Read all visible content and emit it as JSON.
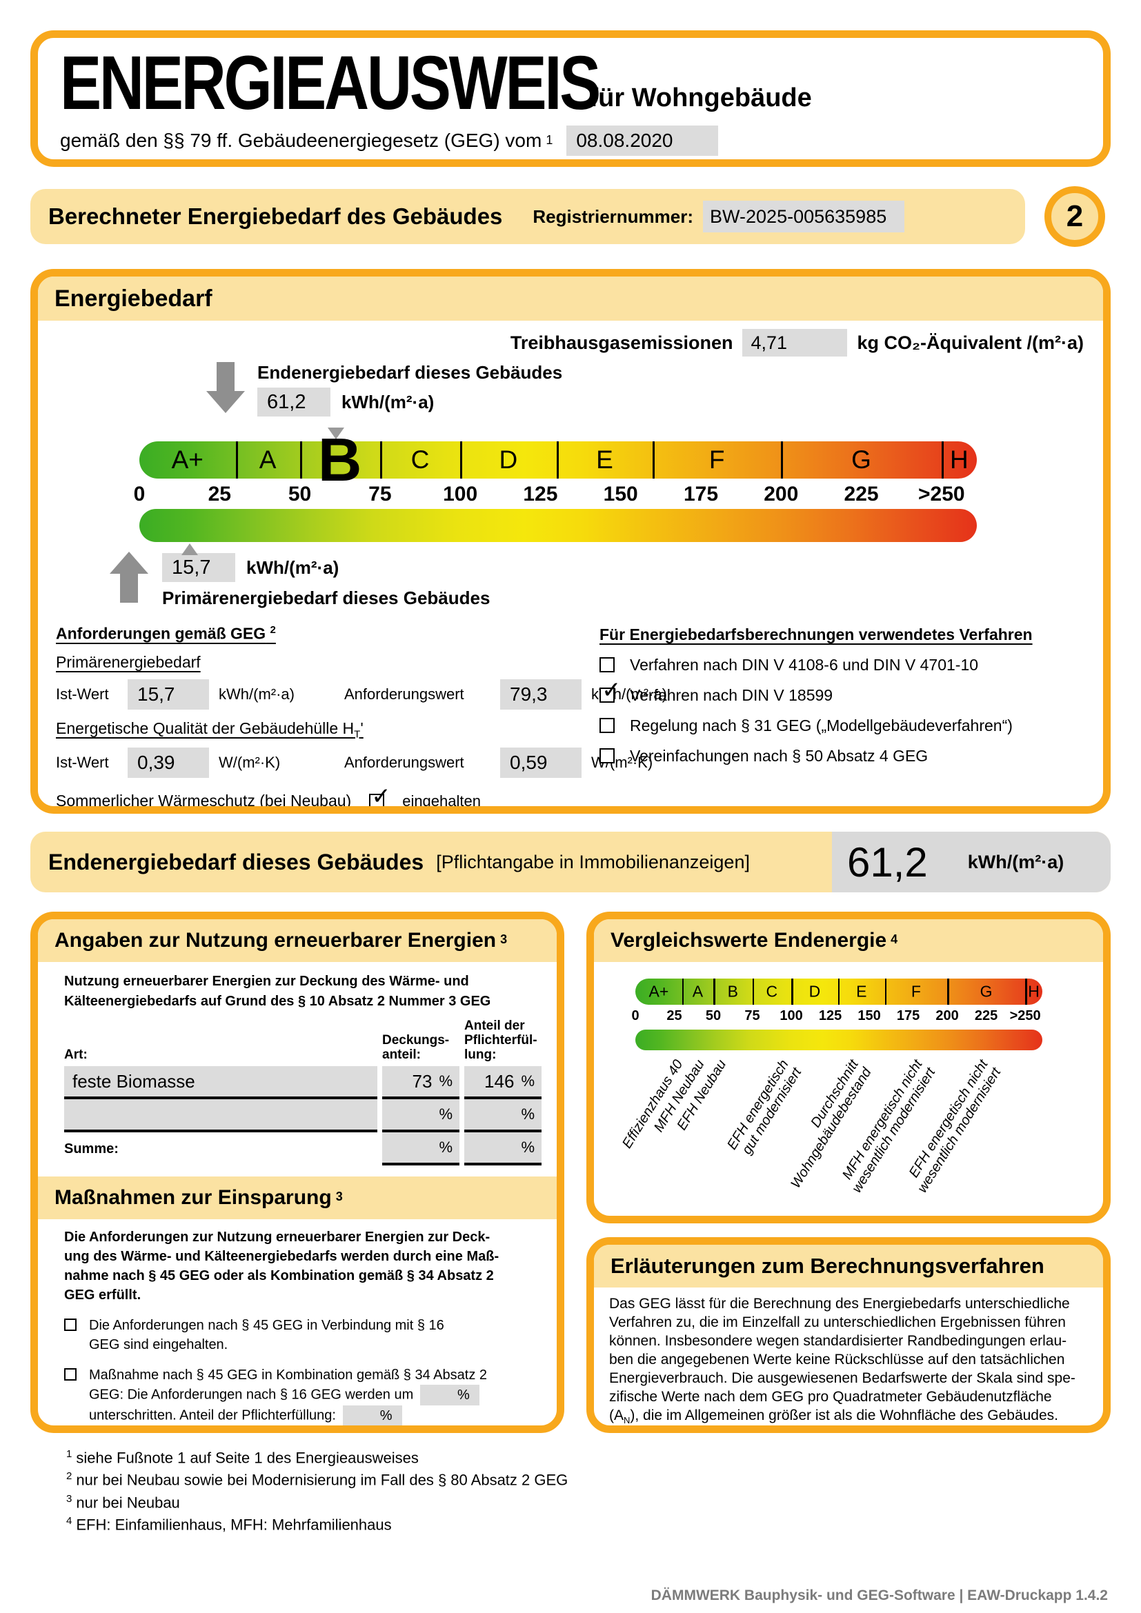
{
  "colors": {
    "accent_orange": "#F8A81C",
    "band_yellow": "#FBE2A2",
    "value_box_gray": "#DCDCDC",
    "arrow_gray": "#8F8F8F",
    "footer_gray": "#7C7C7C",
    "scale_green": "#3BAD24",
    "scale_yellow": "#F5E70C",
    "scale_red": "#E5321A"
  },
  "icons": {
    "check": "✓"
  },
  "page": {
    "number": "2",
    "footer": "DÄMMWERK Bauphysik- und GEG-Software | EAW-Druckapp 1.4.2"
  },
  "header": {
    "title": "ENERGIEAUSWEIS",
    "subtitle": "für Wohngebäude",
    "law_text": "gemäß den §§ 79 ff. Gebäudeenergiegesetz (GEG) vom",
    "law_sup": "1",
    "date": "08.08.2020"
  },
  "section_bar": {
    "title": "Berechneter Energiebedarf des Gebäudes",
    "registration_label": "Registriernummer:",
    "registration_number": "BW-2025-005635985"
  },
  "scale_def": {
    "max": 261,
    "classes": [
      {
        "letter": "A+",
        "from": 0,
        "to": 30
      },
      {
        "letter": "A",
        "from": 30,
        "to": 50
      },
      {
        "letter": "B",
        "from": 50,
        "to": 75
      },
      {
        "letter": "C",
        "from": 75,
        "to": 100
      },
      {
        "letter": "D",
        "from": 100,
        "to": 130
      },
      {
        "letter": "E",
        "from": 130,
        "to": 160
      },
      {
        "letter": "F",
        "from": 160,
        "to": 200
      },
      {
        "letter": "G",
        "from": 200,
        "to": 250
      },
      {
        "letter": "H",
        "from": 250,
        "to": 261
      }
    ],
    "ticks": [
      {
        "value": 0,
        "label": "0"
      },
      {
        "value": 25,
        "label": "25"
      },
      {
        "value": 50,
        "label": "50"
      },
      {
        "value": 75,
        "label": "75"
      },
      {
        "value": 100,
        "label": "100"
      },
      {
        "value": 125,
        "label": "125"
      },
      {
        "value": 150,
        "label": "150"
      },
      {
        "value": 175,
        "label": "175"
      },
      {
        "value": 200,
        "label": "200"
      },
      {
        "value": 225,
        "label": "225"
      },
      {
        "value": 250,
        "label": ">250"
      }
    ]
  },
  "energiebedarf": {
    "title": "Energiebedarf",
    "ghg_label": "Treibhausgasemissionen",
    "ghg_value": "4,71",
    "ghg_unit": "kg CO₂-Äquivalent /(m²·a)",
    "end_label": "Endenergiebedarf dieses Gebäudes",
    "end_value": "61,2",
    "end_unit": "kWh/(m²·a)",
    "primary_value": "15,7",
    "primary_unit": "kWh/(m²·a)",
    "primary_label": "Primärenergiebedarf dieses Gebäudes",
    "current_class": "B",
    "markers": {
      "end_value": 61.2,
      "primary_value": 15.7
    },
    "requirements": {
      "heading": "Anforderungen gemäß GEG",
      "heading_sup": "2",
      "primary_heading": "Primärenergiebedarf",
      "ist_label": "Ist-Wert",
      "anf_label": "Anforderungswert",
      "primary_ist": "15,7",
      "primary_ist_unit": "kWh/(m²·a)",
      "primary_anf": "79,3",
      "primary_anf_unit": "kWh/(m²·a)",
      "envelope_heading_pre": "Energetische Qualität der Gebäudehülle H",
      "envelope_heading_sub": "T",
      "envelope_heading_post": "'",
      "envelope_ist": "0,39",
      "envelope_ist_unit": "W/(m²·K)",
      "envelope_anf": "0,59",
      "envelope_anf_unit": "W/(m²·K)",
      "summer_label": "Sommerlicher Wärmeschutz (bei Neubau)",
      "summer_checked": true,
      "summer_value": "eingehalten"
    },
    "method": {
      "heading": "Für Energiebedarfsberechnungen verwendetes Verfahren",
      "items": [
        {
          "label": "Verfahren nach DIN V 4108-6 und DIN V 4701-10",
          "checked": false
        },
        {
          "label": "Verfahren nach DIN V 18599",
          "checked": true
        },
        {
          "label": "Regelung nach § 31 GEG („Modellgebäudeverfahren“)",
          "checked": false
        },
        {
          "label": "Vereinfachungen nach § 50 Absatz 4 GEG",
          "checked": false
        }
      ]
    }
  },
  "banner": {
    "label": "Endenergiebedarf dieses Gebäudes",
    "note": "[Pflichtangabe in Immobilienanzeigen]",
    "value": "61,2",
    "unit": "kWh/(m²·a)"
  },
  "renewables": {
    "title": "Angaben zur Nutzung erneuerbarer Energien",
    "title_sup": "3",
    "intro": "Nutzung erneuerbarer Energien zur Deckung des Wärme- und\nKälteenergiebedarfs auf Grund des § 10 Absatz 2 Nummer 3 GEG",
    "col_art": "Art:",
    "col_coverage": "Deckungs-\nanteil:",
    "col_obligation": "Anteil der\nPflichterfül-\nlung:",
    "percent_sign": "%",
    "rows": [
      {
        "art": "feste Biomasse",
        "coverage": "73",
        "obligation": "146"
      },
      {
        "art": "",
        "coverage": "",
        "obligation": ""
      }
    ],
    "sum_label": "Summe:",
    "sum_coverage": "",
    "sum_obligation": ""
  },
  "massnahmen": {
    "title": "Maßnahmen zur Einsparung",
    "title_sup": "3",
    "intro": "Die Anforderungen zur Nutzung erneuerbarer Energien zur Deck-\nung des Wärme- und Kälteenergiebedarfs werden durch eine Maß-\nnahme nach § 45 GEG oder als Kombination gemäß § 34 Absatz 2\nGEG erfüllt.",
    "percent_sign": "%",
    "item1": {
      "label": "Die Anforderungen nach § 45 GEG in Verbindung mit § 16\nGEG sind eingehalten.",
      "checked": false
    },
    "item2": {
      "line1": "Maßnahme nach § 45 GEG in Kombination gemäß § 34 Absatz 2",
      "line2": "GEG: Die Anforderungen nach § 16 GEG werden um",
      "line3": "unterschritten. Anteil der Pflichterfüllung:",
      "value1": "",
      "value2": "",
      "checked": false
    }
  },
  "vergleichswerte": {
    "title": "Vergleichswerte Endenergie",
    "title_sup": "4",
    "labels": [
      {
        "value": 24,
        "lines": [
          "Effizienzhaus 40"
        ]
      },
      {
        "value": 38,
        "lines": [
          "MFH Neubau"
        ]
      },
      {
        "value": 52,
        "lines": [
          "EFH Neubau"
        ]
      },
      {
        "value": 92,
        "lines": [
          "EFH energetisch",
          "gut modernisiert"
        ]
      },
      {
        "value": 137,
        "lines": [
          "Durchschnitt",
          "Wohngebäudebestand"
        ]
      },
      {
        "value": 178,
        "lines": [
          "MFH energetisch nicht",
          "wesentlich modernisiert"
        ]
      },
      {
        "value": 220,
        "lines": [
          "EFH energetisch nicht",
          "wesentlich modernisiert"
        ]
      }
    ]
  },
  "erlaeuterungen": {
    "title": "Erläuterungen zum Berechnungsverfahren",
    "body_main": "Das GEG lässt für die Berechnung des Energiebedarfs unterschiedliche\nVerfahren zu, die im Einzelfall zu unterschiedlichen Ergebnissen führen\nkönnen. Insbesondere wegen standardisierter Randbedingungen erlau-\nben die angegebenen Werte keine Rückschlüsse auf den tatsächlichen\nEnergieverbrauch. Die ausgewiesenen Bedarfswerte der Skala sind spe-\nzifische Werte nach dem GEG pro Quadratmeter Gebäudenutzfläche",
    "body_tail_pre": "(A",
    "body_tail_sub": "N",
    "body_tail_post": "), die im Allgemeinen größer ist als die Wohnfläche des Gebäudes."
  },
  "footnotes": [
    {
      "sup": "1",
      "text": "siehe Fußnote 1 auf Seite 1 des Energieausweises"
    },
    {
      "sup": "2",
      "text": "nur bei Neubau sowie bei Modernisierung im Fall des § 80 Absatz 2 GEG"
    },
    {
      "sup": "3",
      "text": "nur bei Neubau"
    },
    {
      "sup": "4",
      "text": "EFH: Einfamilienhaus, MFH: Mehrfamilienhaus"
    }
  ]
}
